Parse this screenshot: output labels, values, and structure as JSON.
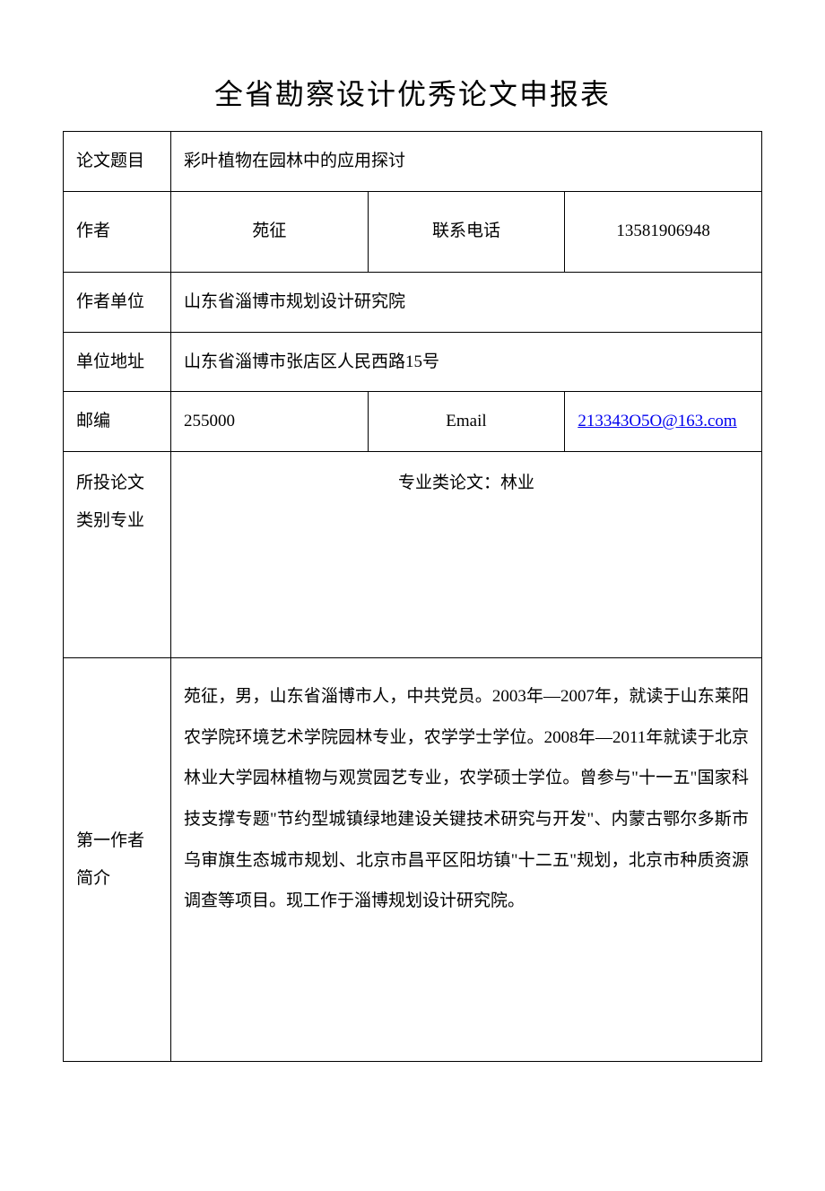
{
  "title": "全省勘察设计优秀论文申报表",
  "rows": {
    "paper_title": {
      "label": "论文题目",
      "value": "彩叶植物在园林中的应用探讨"
    },
    "author": {
      "label": "作者",
      "value": "苑征",
      "phone_label": "联系电话",
      "phone_value": "13581906948"
    },
    "affiliation": {
      "label": "作者单位",
      "value": "山东省淄博市规划设计研究院"
    },
    "address": {
      "label": "单位地址",
      "value": "山东省淄博市张店区人民西路15号"
    },
    "postcode": {
      "label": "邮编",
      "value": "255000",
      "email_label": "Email",
      "email_value": "213343O5O@163.com"
    },
    "category": {
      "label_line1": "所投论文",
      "label_line2": "类别专业",
      "value": "专业类论文：林业"
    },
    "bio": {
      "label_line1": "第一作者",
      "label_line2": "简介",
      "value": "苑征，男，山东省淄博市人，中共党员。2003年―2007年，就读于山东莱阳农学院环境艺术学院园林专业，农学学士学位。2008年―2011年就读于北京林业大学园林植物与观赏园艺专业，农学硕士学位。曾参与\"十一五\"国家科技支撑专题\"节约型城镇绿地建设关键技术研究与开发\"、内蒙古鄂尔多斯市乌审旗生态城市规划、北京市昌平区阳坊镇\"十二五\"规划，北京市种质资源调查等项目。现工作于淄博规划设计研究院。"
    }
  },
  "colors": {
    "text": "#000000",
    "border": "#000000",
    "background": "#ffffff",
    "link": "#0000ee"
  },
  "typography": {
    "title_fontsize": 32,
    "body_fontsize": 19,
    "font_family": "SimSun"
  }
}
